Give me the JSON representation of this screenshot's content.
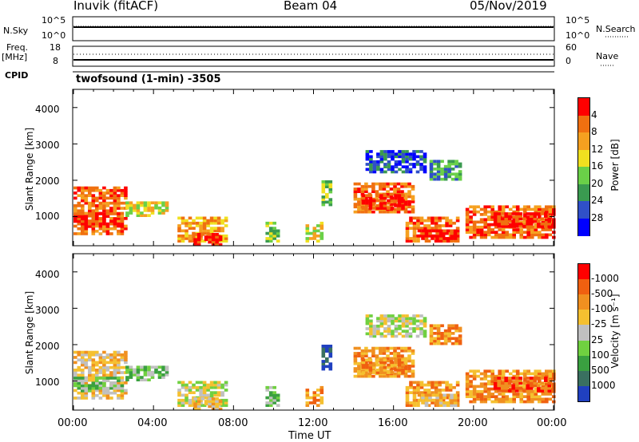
{
  "header": {
    "station": "Inuvik (fitACF)",
    "beam": "Beam 04",
    "date": "05/Nov/2019"
  },
  "strip": {
    "nsky": "N.Sky",
    "sky_hi": "10^5",
    "sky_lo": "10^0",
    "nsearch": "N.Search",
    "search_hi": "10^5",
    "search_lo": "10^0",
    "freq": "Freq.",
    "freq_unit": "[MHz]",
    "freq_hi": "18",
    "freq_lo": "8",
    "nave": "Nave",
    "nave_hi": "60",
    "nave_lo": "0",
    "cpid": "CPID",
    "cpid_value": "twofsound (1-min) -3505"
  },
  "chart_data": [
    {
      "type": "heatmap",
      "title": "",
      "ylabel": "Slant Range [km]",
      "xlabel": "",
      "y_ticks": [
        "1000",
        "2000",
        "3000",
        "4000"
      ],
      "ylim": [
        200,
        4500
      ],
      "xlim": [
        "00:00",
        "24:00"
      ],
      "colorbar_label": "Power [dB]",
      "colorbar_ticks": [
        "4",
        "8",
        "12",
        "16",
        "20",
        "24",
        "28"
      ],
      "colors": [
        "#0000ff",
        "#3050c8",
        "#3a9a50",
        "#6ad048",
        "#f0e020",
        "#f5a020",
        "#f07010",
        "#ff0000"
      ]
    },
    {
      "type": "heatmap",
      "title": "",
      "ylabel": "Slant Range [km]",
      "xlabel": "Time UT",
      "x_ticks": [
        "00:00",
        "04:00",
        "08:00",
        "12:00",
        "16:00",
        "20:00",
        "00:00"
      ],
      "y_ticks": [
        "1000",
        "2000",
        "3000",
        "4000"
      ],
      "ylim": [
        200,
        4500
      ],
      "colorbar_label": "Velocity [m s⁻¹]",
      "colorbar_ticks": [
        "1000",
        "500",
        "100",
        "25",
        "-25",
        "-100",
        "-500",
        "-1000"
      ],
      "colors": [
        "#2040c0",
        "#3a7060",
        "#3aa040",
        "#70d040",
        "#c0c0c0",
        "#f5c030",
        "#f09020",
        "#f06010",
        "#ff0000"
      ]
    }
  ]
}
